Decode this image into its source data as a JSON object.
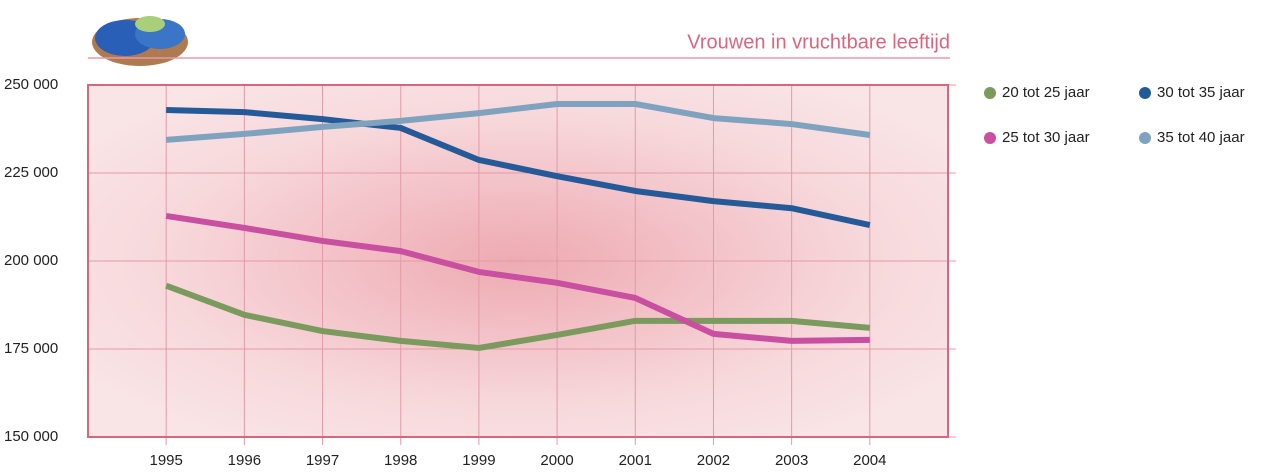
{
  "chart_data": {
    "type": "line",
    "title": "Vrouwen in vruchtbare leeftijd",
    "x": [
      1995,
      1996,
      1997,
      1998,
      1999,
      2000,
      2001,
      2002,
      2003,
      2004
    ],
    "xlim": [
      1994,
      2005
    ],
    "xticks": [
      1995,
      1996,
      1997,
      1998,
      1999,
      2000,
      2001,
      2002,
      2003,
      2004
    ],
    "ylim": [
      150000,
      250000
    ],
    "yticks": [
      {
        "value": 150000,
        "label": "150 000"
      },
      {
        "value": 175000,
        "label": "175 000"
      },
      {
        "value": 200000,
        "label": "200 000"
      },
      {
        "value": 225000,
        "label": "225 000"
      },
      {
        "value": 250000,
        "label": "250 000"
      }
    ],
    "grid": true,
    "series": [
      {
        "name": "20 tot 25 jaar",
        "color": "#7a9a5e",
        "values": [
          193000,
          184700,
          180100,
          177300,
          175300,
          179000,
          183000,
          183000,
          183000,
          181000
        ]
      },
      {
        "name": "25 tot 30 jaar",
        "color": "#c94fa0",
        "values": [
          212800,
          209400,
          205700,
          202800,
          196900,
          193800,
          189500,
          179300,
          177300,
          177600
        ]
      },
      {
        "name": "30 tot 35 jaar",
        "color": "#255a98",
        "values": [
          242900,
          242300,
          240300,
          237800,
          228700,
          224100,
          219900,
          217000,
          215000,
          210200
        ]
      },
      {
        "name": "35 tot 40 jaar",
        "color": "#7fa3bf",
        "values": [
          234400,
          236100,
          238100,
          239800,
          242000,
          244600,
          244600,
          240600,
          238900,
          235800
        ]
      }
    ]
  }
}
